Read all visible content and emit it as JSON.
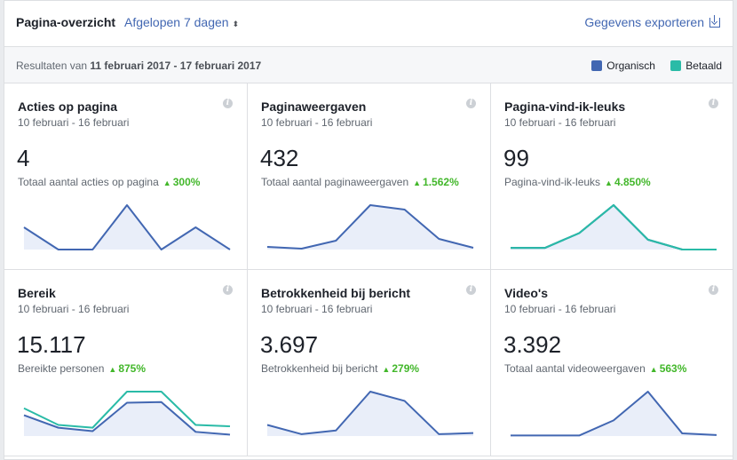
{
  "header": {
    "title": "Pagina-overzicht",
    "period": "Afgelopen 7 dagen",
    "period_caret": "⬍",
    "export_label": "Gegevens exporteren"
  },
  "subheader": {
    "results_prefix": "Resultaten van",
    "results_range": "11 februari 2017 - 17 februari 2017",
    "legend": [
      {
        "label": "Organisch",
        "color": "#4267b2"
      },
      {
        "label": "Betaald",
        "color": "#2abba7"
      }
    ]
  },
  "colors": {
    "organic": "#4267b2",
    "paid": "#2abba7",
    "fill": "#e9eef9",
    "positive": "#42b72a"
  },
  "cards": [
    {
      "title": "Acties op pagina",
      "date": "10 februari - 16 februari",
      "value": "4",
      "subtitle": "Totaal aantal acties op pagina",
      "change": "300%",
      "series": [
        {
          "name": "organic",
          "values": [
            1,
            0,
            0,
            2,
            0,
            1,
            0
          ]
        }
      ]
    },
    {
      "title": "Paginaweergaven",
      "date": "10 februari - 16 februari",
      "value": "432",
      "subtitle": "Totaal aantal paginaweergaven",
      "change": "1.562%",
      "series": [
        {
          "name": "organic",
          "values": [
            3,
            1,
            10,
            50,
            45,
            12,
            2
          ]
        }
      ]
    },
    {
      "title": "Pagina-vind-ik-leuks",
      "date": "10 februari - 16 februari",
      "value": "99",
      "subtitle": "Pagina-vind-ik-leuks",
      "change": "4.850%",
      "series": [
        {
          "name": "organic",
          "values": [
            1,
            1,
            10,
            27,
            6,
            0,
            0
          ]
        },
        {
          "name": "paid",
          "values": [
            1,
            1,
            10,
            27,
            6,
            0,
            0
          ]
        }
      ]
    },
    {
      "title": "Bereik",
      "date": "10 februari - 16 februari",
      "value": "15.117",
      "subtitle": "Bereikte personen",
      "change": "875%",
      "series": [
        {
          "name": "organic",
          "values": [
            1500,
            600,
            350,
            2400,
            2450,
            300,
            100
          ]
        },
        {
          "name": "paid",
          "values": [
            2000,
            800,
            600,
            3200,
            3200,
            800,
            700
          ]
        }
      ]
    },
    {
      "title": "Betrokkenheid bij bericht",
      "date": "10 februari - 16 februari",
      "value": "3.697",
      "subtitle": "Betrokkenheid bij bericht",
      "change": "279%",
      "series": [
        {
          "name": "organic",
          "values": [
            300,
            50,
            150,
            1200,
            950,
            50,
            80
          ]
        }
      ]
    },
    {
      "title": "Video's",
      "date": "10 februari - 16 februari",
      "value": "3.392",
      "subtitle": "Totaal aantal videoweergaven",
      "change": "563%",
      "series": [
        {
          "name": "organic",
          "values": [
            10,
            10,
            10,
            300,
            850,
            50,
            20
          ]
        }
      ]
    }
  ]
}
